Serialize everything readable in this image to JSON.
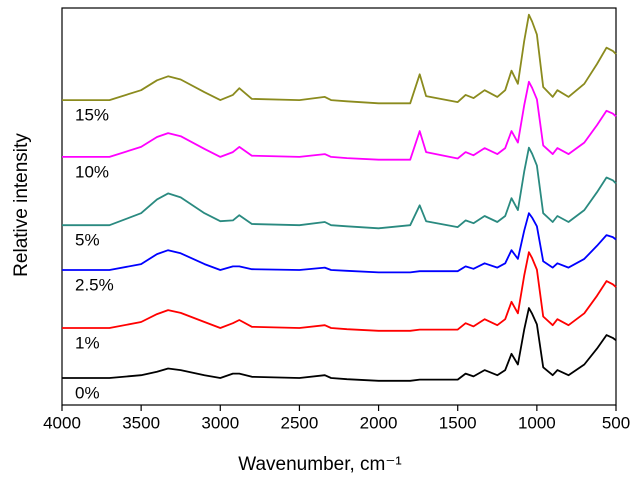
{
  "chart_data": {
    "type": "line",
    "x_label": "Wavenumber, cm⁻¹",
    "y_label": "Relative intensity",
    "xlim": [
      4000,
      500
    ],
    "xticks": [
      4000,
      3500,
      3000,
      2500,
      2000,
      1500,
      1000,
      500
    ],
    "ylim": [
      0,
      100
    ],
    "x": [
      4000,
      3700,
      3500,
      3400,
      3330,
      3250,
      3100,
      3000,
      2920,
      2880,
      2800,
      2500,
      2340,
      2300,
      2200,
      2000,
      1800,
      1740,
      1700,
      1500,
      1450,
      1400,
      1330,
      1250,
      1200,
      1160,
      1120,
      1080,
      1050,
      1030,
      1000,
      960,
      900,
      870,
      800,
      700,
      620,
      560,
      520,
      500
    ],
    "series": [
      {
        "name": "0%",
        "color": "#000000",
        "values": [
          6.8,
          6.8,
          7.5,
          8.4,
          9.2,
          8.8,
          7.5,
          6.8,
          7.9,
          7.9,
          7.1,
          6.8,
          7.5,
          6.8,
          6.5,
          6.1,
          6.1,
          6.4,
          6.4,
          6.4,
          7.9,
          7.2,
          8.8,
          7.5,
          8.8,
          12.9,
          10.2,
          19,
          24.4,
          23,
          20.3,
          9.5,
          7.5,
          8.8,
          7.5,
          10.2,
          14.2,
          17.6,
          16.9,
          16.3
        ]
      },
      {
        "name": "1%",
        "color": "#ff0000",
        "values": [
          19.4,
          19.4,
          20.9,
          22.9,
          23.9,
          23.2,
          20.9,
          19.4,
          20.6,
          21.4,
          19.7,
          19.4,
          20.1,
          19.4,
          19.1,
          18.7,
          18.7,
          19,
          19,
          19,
          20.6,
          19.8,
          21.6,
          20.1,
          21.6,
          26,
          23.1,
          32.6,
          38.5,
          37,
          34.1,
          22.3,
          20.1,
          21.6,
          20.1,
          23.1,
          27.5,
          31.2,
          30.4,
          29.7
        ]
      },
      {
        "name": "2.5%",
        "color": "#0000ff",
        "values": [
          34,
          34,
          35.5,
          38,
          39,
          38.2,
          35.5,
          34,
          34.9,
          34.9,
          34.2,
          34,
          34.6,
          34,
          33.8,
          33.4,
          33.4,
          33.7,
          33.7,
          33.7,
          34.9,
          34.3,
          35.7,
          34.6,
          35.7,
          39,
          36.8,
          43.9,
          48.3,
          47.2,
          45,
          36.2,
          34.6,
          35.7,
          34.6,
          36.8,
          40.1,
          42.8,
          42.3,
          41.7
        ]
      },
      {
        "name": "5%",
        "color": "#2a8a80",
        "values": [
          45.3,
          45.3,
          48.3,
          51.8,
          53.3,
          52.3,
          48.3,
          46.3,
          46.5,
          47.8,
          45.6,
          45.3,
          46.1,
          45.3,
          45,
          44.5,
          45.3,
          50.3,
          46.3,
          44.8,
          46.5,
          45.8,
          47.6,
          46.1,
          47.6,
          52.1,
          49.1,
          58.8,
          64.8,
          63.3,
          60.3,
          48.3,
          46.1,
          47.6,
          46.1,
          49.1,
          53.6,
          57.3,
          56.6,
          55.8
        ]
      },
      {
        "name": "10%",
        "color": "#ff00ff",
        "values": [
          62.5,
          62.5,
          65,
          67.5,
          68.5,
          67.7,
          64.5,
          62.5,
          63.7,
          65,
          62.8,
          62.5,
          63.2,
          62.5,
          62.2,
          61.8,
          61.8,
          69,
          63.7,
          62.1,
          63.7,
          62.9,
          64.7,
          63.2,
          64.7,
          69,
          66.1,
          75.5,
          81.4,
          79.9,
          77,
          65.4,
          63.2,
          64.7,
          63.2,
          66.1,
          70.5,
          74.1,
          73.4,
          72.7
        ]
      },
      {
        "name": "15%",
        "color": "#8b8b1e",
        "values": [
          76.8,
          76.8,
          79.3,
          81.8,
          82.8,
          82,
          78.8,
          76.8,
          78.1,
          79.8,
          77.1,
          76.8,
          77.6,
          76.8,
          76.5,
          76,
          76,
          83.3,
          77.8,
          76.3,
          78.1,
          77.3,
          79.3,
          77.6,
          79.3,
          84.2,
          80.9,
          91.7,
          98.3,
          96.6,
          93.3,
          80.1,
          77.6,
          79.3,
          77.6,
          80.9,
          85.9,
          90,
          89.2,
          88.4
        ]
      }
    ]
  }
}
